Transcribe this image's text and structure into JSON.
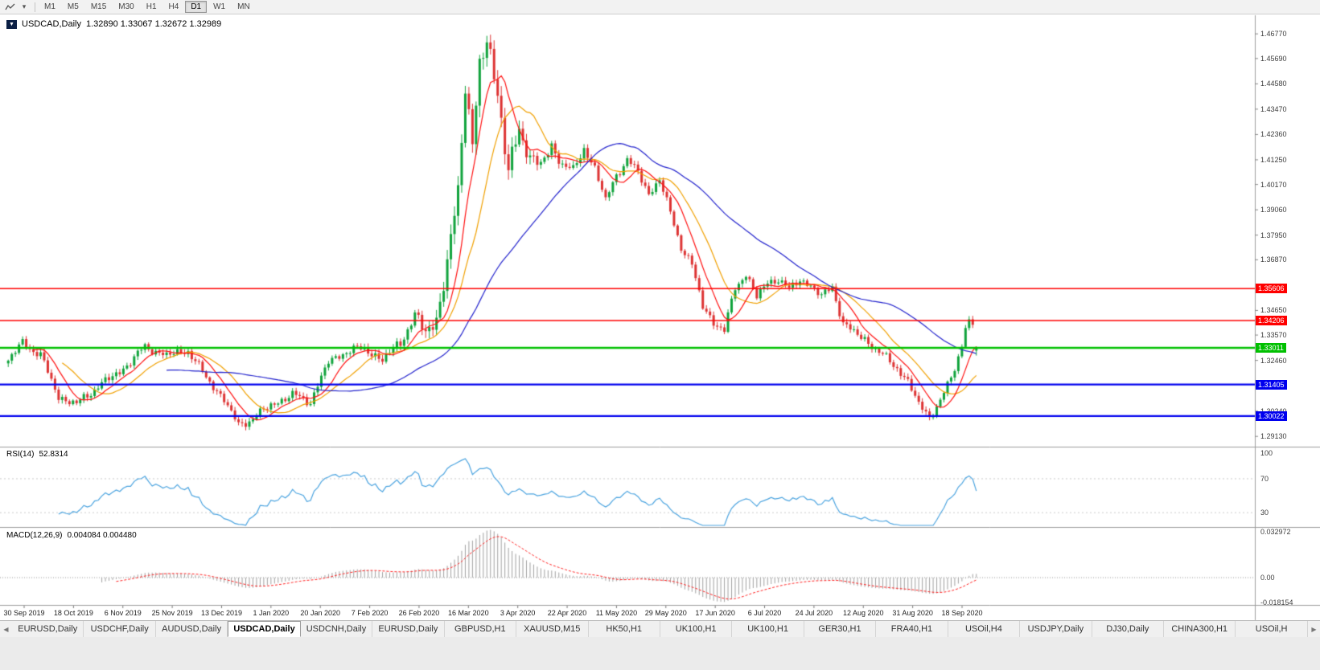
{
  "toolbar": {
    "timeframes": [
      {
        "label": "M1"
      },
      {
        "label": "M5"
      },
      {
        "label": "M15"
      },
      {
        "label": "M30"
      },
      {
        "label": "H1"
      },
      {
        "label": "H4"
      },
      {
        "label": "D1",
        "active": true
      },
      {
        "label": "W1"
      },
      {
        "label": "MN"
      }
    ],
    "icons": [
      "chart-line-icon",
      "dropdown-caret-icon"
    ]
  },
  "chart": {
    "title": "USDCAD,Daily",
    "ohlc_text": "1.32890 1.33067 1.32672 1.32989",
    "rsi_label": "RSI(14)",
    "rsi_value": "52.8314",
    "macd_label": "MACD(12,26,9)",
    "macd_values": "0.004084 0.004480"
  },
  "chart_data": {
    "type": "candlestick",
    "symbol": "USDCAD",
    "timeframe": "Daily",
    "ohlc": {
      "open": 1.3289,
      "high": 1.33067,
      "low": 1.32672,
      "close": 1.32989
    },
    "num_candles": 270,
    "price_keyframes": [
      [
        0,
        1.3245
      ],
      [
        4,
        1.3325
      ],
      [
        9,
        1.3268
      ],
      [
        14,
        1.3085
      ],
      [
        19,
        1.3055
      ],
      [
        26,
        1.3145
      ],
      [
        31,
        1.3195
      ],
      [
        38,
        1.3305
      ],
      [
        44,
        1.3268
      ],
      [
        50,
        1.329
      ],
      [
        55,
        1.317
      ],
      [
        60,
        1.3075
      ],
      [
        64,
        1.296
      ],
      [
        68,
        1.2992
      ],
      [
        73,
        1.305
      ],
      [
        79,
        1.3095
      ],
      [
        84,
        1.3065
      ],
      [
        89,
        1.324
      ],
      [
        94,
        1.3285
      ],
      [
        99,
        1.33
      ],
      [
        104,
        1.3245
      ],
      [
        109,
        1.333
      ],
      [
        113,
        1.3435
      ],
      [
        116,
        1.3375
      ],
      [
        119,
        1.3425
      ],
      [
        122,
        1.366
      ],
      [
        125,
        1.3985
      ],
      [
        127,
        1.448
      ],
      [
        129,
        1.419
      ],
      [
        131,
        1.4515
      ],
      [
        133,
        1.4655
      ],
      [
        136,
        1.443
      ],
      [
        139,
        1.406
      ],
      [
        142,
        1.426
      ],
      [
        145,
        1.414
      ],
      [
        148,
        1.41
      ],
      [
        151,
        1.418
      ],
      [
        154,
        1.411
      ],
      [
        157,
        1.4075
      ],
      [
        160,
        1.4175
      ],
      [
        163,
        1.409
      ],
      [
        166,
        1.3945
      ],
      [
        169,
        1.406
      ],
      [
        172,
        1.4125
      ],
      [
        175,
        1.407
      ],
      [
        178,
        1.3975
      ],
      [
        181,
        1.404
      ],
      [
        184,
        1.389
      ],
      [
        187,
        1.3745
      ],
      [
        190,
        1.3665
      ],
      [
        193,
        1.348
      ],
      [
        196,
        1.3415
      ],
      [
        199,
        1.3375
      ],
      [
        202,
        1.3565
      ],
      [
        205,
        1.3625
      ],
      [
        208,
        1.3525
      ],
      [
        211,
        1.3585
      ],
      [
        214,
        1.3605
      ],
      [
        217,
        1.3555
      ],
      [
        220,
        1.36
      ],
      [
        223,
        1.3575
      ],
      [
        226,
        1.3525
      ],
      [
        229,
        1.357
      ],
      [
        232,
        1.3405
      ],
      [
        235,
        1.337
      ],
      [
        238,
        1.334
      ],
      [
        241,
        1.3295
      ],
      [
        244,
        1.3255
      ],
      [
        247,
        1.3215
      ],
      [
        250,
        1.315
      ],
      [
        253,
        1.3055
      ],
      [
        256,
        1.3
      ],
      [
        259,
        1.3065
      ],
      [
        262,
        1.317
      ],
      [
        265,
        1.331
      ],
      [
        266,
        1.3395
      ],
      [
        267,
        1.3415
      ],
      [
        268,
        1.3405
      ],
      [
        269,
        1.3299
      ]
    ],
    "y_axis": {
      "min": 1.2875,
      "max": 1.4755,
      "ticks": [
        "1.46770",
        "1.45690",
        "1.44580",
        "1.43470",
        "1.42360",
        "1.41250",
        "1.40170",
        "1.39060",
        "1.37950",
        "1.36870",
        "1.34650",
        "1.33570",
        "1.32460",
        "1.30240",
        "1.29130"
      ]
    },
    "x_labels": [
      "30 Sep 2019",
      "18 Oct 2019",
      "6 Nov 2019",
      "25 Nov 2019",
      "13 Dec 2019",
      "1 Jan 2020",
      "20 Jan 2020",
      "7 Feb 2020",
      "26 Feb 2020",
      "16 Mar 2020",
      "3 Apr 2020",
      "22 Apr 2020",
      "11 May 2020",
      "29 May 2020",
      "17 Jun 2020",
      "6 Jul 2020",
      "24 Jul 2020",
      "12 Aug 2020",
      "31 Aug 2020",
      "18 Sep 2020"
    ],
    "hlines": [
      {
        "price": 1.35606,
        "label": "1.35606",
        "color": "#ff0000",
        "width": 1.6
      },
      {
        "price": 1.34206,
        "label": "1.34206",
        "color": "#ff0000",
        "width": 1.6
      },
      {
        "price": 1.33011,
        "label": "1.33011",
        "color": "#00c000",
        "width": 2.6
      },
      {
        "price": 1.31405,
        "label": "1.31405",
        "color": "#0000ee",
        "width": 2.2
      },
      {
        "price": 1.30022,
        "label": "1.30022",
        "color": "#0000ee",
        "width": 2.2
      }
    ],
    "moving_averages": [
      {
        "period": 16,
        "color": "#f0a000"
      },
      {
        "period": 8,
        "color": "#ff1010"
      },
      {
        "period": 45,
        "color": "#2222cc"
      }
    ],
    "rsi": {
      "period": 14,
      "value": 52.8314,
      "levels": [
        100,
        70,
        30
      ],
      "range": [
        15,
        105
      ],
      "color": "#4aa3df"
    },
    "macd": {
      "params": "12,26,9",
      "macd_value": 0.004084,
      "signal_value": 0.00448,
      "axis_max": "0.032972",
      "axis_zero": "0.00",
      "axis_min": "-0.018154",
      "range": [
        -0.018154,
        0.032972
      ],
      "histogram_color": "#a0a0a0",
      "signal_color": "#ff2020"
    },
    "colors": {
      "up": "#10a33c",
      "down": "#dd3333",
      "background": "#ffffff",
      "axis_text": "#3c3c3c"
    }
  },
  "tabs": {
    "scroll_left": "◀",
    "scroll_right": "▶",
    "items": [
      {
        "label": "EURUSD,Daily"
      },
      {
        "label": "USDCHF,Daily"
      },
      {
        "label": "AUDUSD,Daily"
      },
      {
        "label": "USDCAD,Daily",
        "active": true
      },
      {
        "label": "USDCNH,Daily"
      },
      {
        "label": "EURUSD,Daily"
      },
      {
        "label": "GBPUSD,H1"
      },
      {
        "label": "XAUUSD,M15"
      },
      {
        "label": "HK50,H1"
      },
      {
        "label": "UK100,H1"
      },
      {
        "label": "UK100,H1"
      },
      {
        "label": "GER30,H1"
      },
      {
        "label": "FRA40,H1"
      },
      {
        "label": "USOil,H4"
      },
      {
        "label": "USDJPY,Daily"
      },
      {
        "label": "DJ30,Daily"
      },
      {
        "label": "CHINA300,H1"
      },
      {
        "label": "USOil,H"
      }
    ]
  }
}
